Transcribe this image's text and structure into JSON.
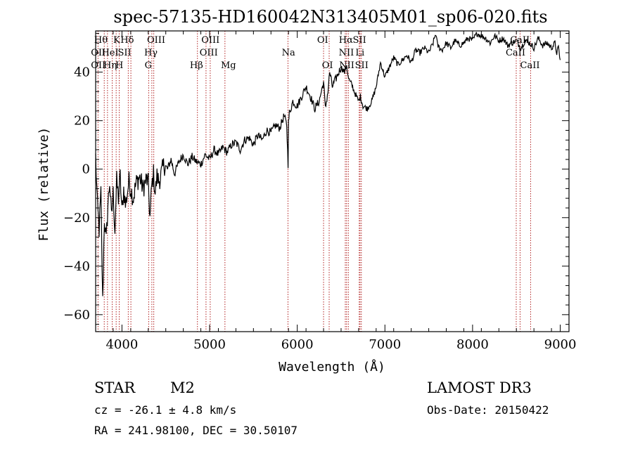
{
  "chart_data": {
    "type": "line",
    "title": "spec-57135-HD160042N313405M01_sp06-020.fits",
    "xlabel": "Wavelength (Å)",
    "ylabel": "Flux (relative)",
    "xlim": [
      3700,
      9100
    ],
    "ylim": [
      -67,
      57
    ],
    "x_ticks": [
      4000,
      5000,
      6000,
      7000,
      8000,
      9000
    ],
    "x_tick_labels": [
      "4000",
      "5000",
      "6000",
      "7000",
      "8000",
      "9000"
    ],
    "y_ticks": [
      -60,
      -40,
      -20,
      0,
      20,
      40
    ],
    "y_tick_labels": [
      "−60",
      "−40",
      "−20",
      "0",
      "20",
      "40"
    ],
    "series": [
      {
        "name": "flux",
        "x": [
          3700,
          3720,
          3740,
          3760,
          3780,
          3800,
          3820,
          3840,
          3860,
          3880,
          3900,
          3920,
          3940,
          3960,
          3980,
          4000,
          4020,
          4040,
          4060,
          4080,
          4100,
          4130,
          4160,
          4200,
          4240,
          4280,
          4300,
          4320,
          4340,
          4360,
          4380,
          4400,
          4420,
          4450,
          4480,
          4520,
          4560,
          4600,
          4650,
          4700,
          4750,
          4800,
          4850,
          4900,
          4950,
          5000,
          5050,
          5100,
          5150,
          5200,
          5250,
          5300,
          5350,
          5400,
          5450,
          5500,
          5550,
          5600,
          5650,
          5700,
          5750,
          5800,
          5850,
          5880,
          5895,
          5900,
          5910,
          5950,
          6000,
          6050,
          6100,
          6150,
          6200,
          6250,
          6300,
          6320,
          6350,
          6370,
          6400,
          6450,
          6500,
          6540,
          6563,
          6580,
          6600,
          6620,
          6650,
          6700,
          6720,
          6750,
          6800,
          6850,
          6900,
          6950,
          7000,
          7050,
          7100,
          7150,
          7200,
          7250,
          7300,
          7350,
          7400,
          7450,
          7500,
          7550,
          7580,
          7600,
          7650,
          7700,
          7750,
          7800,
          7850,
          7900,
          7950,
          8000,
          8050,
          8100,
          8150,
          8200,
          8250,
          8300,
          8350,
          8400,
          8450,
          8500,
          8550,
          8600,
          8650,
          8700,
          8750,
          8800,
          8850,
          8900,
          8940,
          8960,
          8980,
          9000
        ],
        "y": [
          5,
          -15,
          -25,
          -10,
          -55,
          -20,
          -30,
          -15,
          -5,
          -20,
          -10,
          -25,
          -5,
          -12,
          -3,
          -18,
          -8,
          -15,
          -10,
          -5,
          -8,
          -12,
          -6,
          -3,
          -8,
          -4,
          -6,
          -20,
          -7,
          -2,
          -10,
          -3,
          -5,
          -2,
          2,
          0,
          4,
          -2,
          3,
          6,
          2,
          5,
          3,
          2,
          6,
          4,
          8,
          6,
          9,
          7,
          10,
          11,
          8,
          12,
          13,
          10,
          14,
          12,
          16,
          15,
          18,
          17,
          22,
          18,
          2,
          19,
          23,
          28,
          26,
          30,
          34,
          30,
          25,
          28,
          36,
          25,
          32,
          40,
          34,
          38,
          42,
          40,
          43,
          38,
          36,
          35,
          32,
          28,
          30,
          26,
          25,
          28,
          34,
          44,
          38,
          42,
          46,
          43,
          45,
          47,
          44,
          49,
          48,
          50,
          48,
          52,
          56,
          51,
          49,
          52,
          50,
          53,
          51,
          52,
          54,
          53,
          56,
          55,
          54,
          52,
          55,
          53,
          54,
          51,
          52,
          53,
          50,
          53,
          52,
          50,
          54,
          51,
          52,
          50,
          52,
          48,
          50,
          45
        ],
        "color": "#000000"
      }
    ],
    "lines": [
      {
        "name": "OII",
        "wavelength": 3727
      },
      {
        "name": "Hθ",
        "wavelength": 3798
      },
      {
        "name": "Hη",
        "wavelength": 3835
      },
      {
        "name": "HeI",
        "wavelength": 3889
      },
      {
        "name": "K",
        "wavelength": 3934
      },
      {
        "name": "H",
        "wavelength": 3969
      },
      {
        "name": "SII",
        "wavelength": 4072
      },
      {
        "name": "Hδ",
        "wavelength": 4102
      },
      {
        "name": "G",
        "wavelength": 4305
      },
      {
        "name": "Hγ",
        "wavelength": 4341
      },
      {
        "name": "OIII",
        "wavelength": 4363
      },
      {
        "name": "Hβ",
        "wavelength": 4861
      },
      {
        "name": "OIII",
        "wavelength": 4959
      },
      {
        "name": "OIII",
        "wavelength": 5007
      },
      {
        "name": "Mg",
        "wavelength": 5175
      },
      {
        "name": "Na",
        "wavelength": 5894
      },
      {
        "name": "OI",
        "wavelength": 6300
      },
      {
        "name": "OI",
        "wavelength": 6364
      },
      {
        "name": "NII",
        "wavelength": 6548
      },
      {
        "name": "Hα",
        "wavelength": 6563
      },
      {
        "name": "NII",
        "wavelength": 6583
      },
      {
        "name": "Li",
        "wavelength": 6707
      },
      {
        "name": "SII",
        "wavelength": 6716
      },
      {
        "name": "SII",
        "wavelength": 6731
      },
      {
        "name": "CaII",
        "wavelength": 8498
      },
      {
        "name": "CaII",
        "wavelength": 8542
      },
      {
        "name": "CaII",
        "wavelength": 8662
      }
    ],
    "line_labels": [
      {
        "text": "Hθ",
        "wavelength": 3760,
        "row": 1
      },
      {
        "text": "K",
        "wavelength": 3940,
        "row": 1
      },
      {
        "text": "Hδ",
        "wavelength": 4060,
        "row": 1
      },
      {
        "text": "OIII",
        "wavelength": 4390,
        "row": 1
      },
      {
        "text": "OIII",
        "wavelength": 5010,
        "row": 1
      },
      {
        "text": "OI",
        "wavelength": 6290,
        "row": 1
      },
      {
        "text": "Hα",
        "wavelength": 6555,
        "row": 1
      },
      {
        "text": "SII",
        "wavelength": 6710,
        "row": 1
      },
      {
        "text": "CaII",
        "wavelength": 8540,
        "row": 1
      },
      {
        "text": "OII",
        "wavelength": 3730,
        "row": 2
      },
      {
        "text": "HeI",
        "wavelength": 3865,
        "row": 2
      },
      {
        "text": "SII",
        "wavelength": 4030,
        "row": 2
      },
      {
        "text": "Hγ",
        "wavelength": 4330,
        "row": 2
      },
      {
        "text": "OIII",
        "wavelength": 4990,
        "row": 2
      },
      {
        "text": "Na",
        "wavelength": 5900,
        "row": 2
      },
      {
        "text": "NII",
        "wavelength": 6560,
        "row": 2
      },
      {
        "text": "Li",
        "wavelength": 6715,
        "row": 2
      },
      {
        "text": "CaII",
        "wavelength": 8490,
        "row": 2
      },
      {
        "text": "OII",
        "wavelength": 3730,
        "row": 3
      },
      {
        "text": "Hη",
        "wavelength": 3865,
        "row": 3
      },
      {
        "text": "H",
        "wavelength": 3970,
        "row": 3
      },
      {
        "text": "G",
        "wavelength": 4300,
        "row": 3
      },
      {
        "text": "Hβ",
        "wavelength": 4850,
        "row": 3
      },
      {
        "text": "Mg",
        "wavelength": 5215,
        "row": 3
      },
      {
        "text": "OI",
        "wavelength": 6345,
        "row": 3
      },
      {
        "text": "NII",
        "wavelength": 6565,
        "row": 3
      },
      {
        "text": "SII",
        "wavelength": 6735,
        "row": 3
      },
      {
        "text": "CaII",
        "wavelength": 8655,
        "row": 3
      }
    ],
    "colors": {
      "spectrum": "#000000",
      "line_marker": "#b22222",
      "axes": "#000000"
    }
  },
  "info": {
    "object_class": "STAR",
    "subclass": "M2",
    "survey": "LAMOST DR3",
    "redshift": "cz = -26.1 ± 4.8 km/s",
    "obs_date": "Obs-Date: 20150422",
    "coords": "RA = 241.98100, DEC =  30.50107"
  }
}
